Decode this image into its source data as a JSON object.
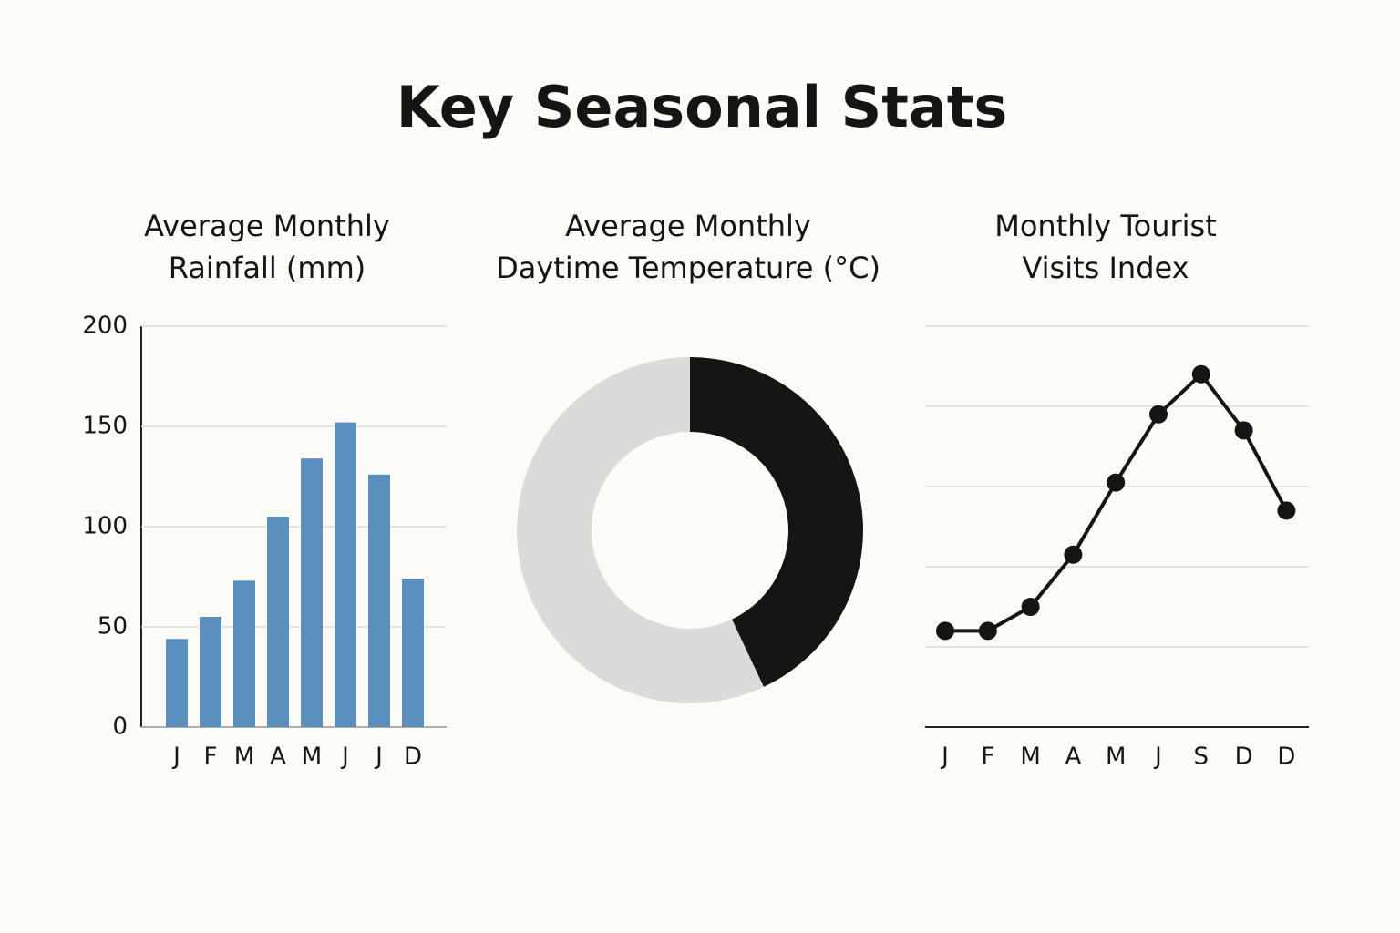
{
  "title": "Key Seasonal Stats",
  "chart_data": [
    {
      "type": "bar",
      "title": [
        "Average Monthly",
        "Rainfall (mm)"
      ],
      "categories": [
        "J",
        "F",
        "M",
        "A",
        "M",
        "J",
        "J",
        "D"
      ],
      "values": [
        44,
        55,
        73,
        105,
        134,
        152,
        126,
        74
      ],
      "color": "#5b8fbc",
      "ylim": [
        0,
        200
      ],
      "yticks": [
        0,
        50,
        100,
        150,
        200
      ],
      "grid": true
    },
    {
      "type": "donut",
      "title": [
        "Average Monthly",
        "Daytime Temperature (°C)"
      ],
      "categories": [
        null,
        null
      ],
      "values": [
        43,
        57
      ],
      "colors": [
        "#151513",
        "#dcdbd9"
      ]
    },
    {
      "type": "line",
      "title": [
        "Monthly Tourist",
        "Visits Index"
      ],
      "categories": [
        "J",
        "F",
        "M",
        "A",
        "M",
        "J",
        "S",
        "D",
        "D"
      ],
      "values": [
        24,
        24,
        30,
        43,
        61,
        78,
        88,
        74,
        54
      ],
      "color": "#151513",
      "ylim": [
        0,
        100
      ]
    }
  ]
}
